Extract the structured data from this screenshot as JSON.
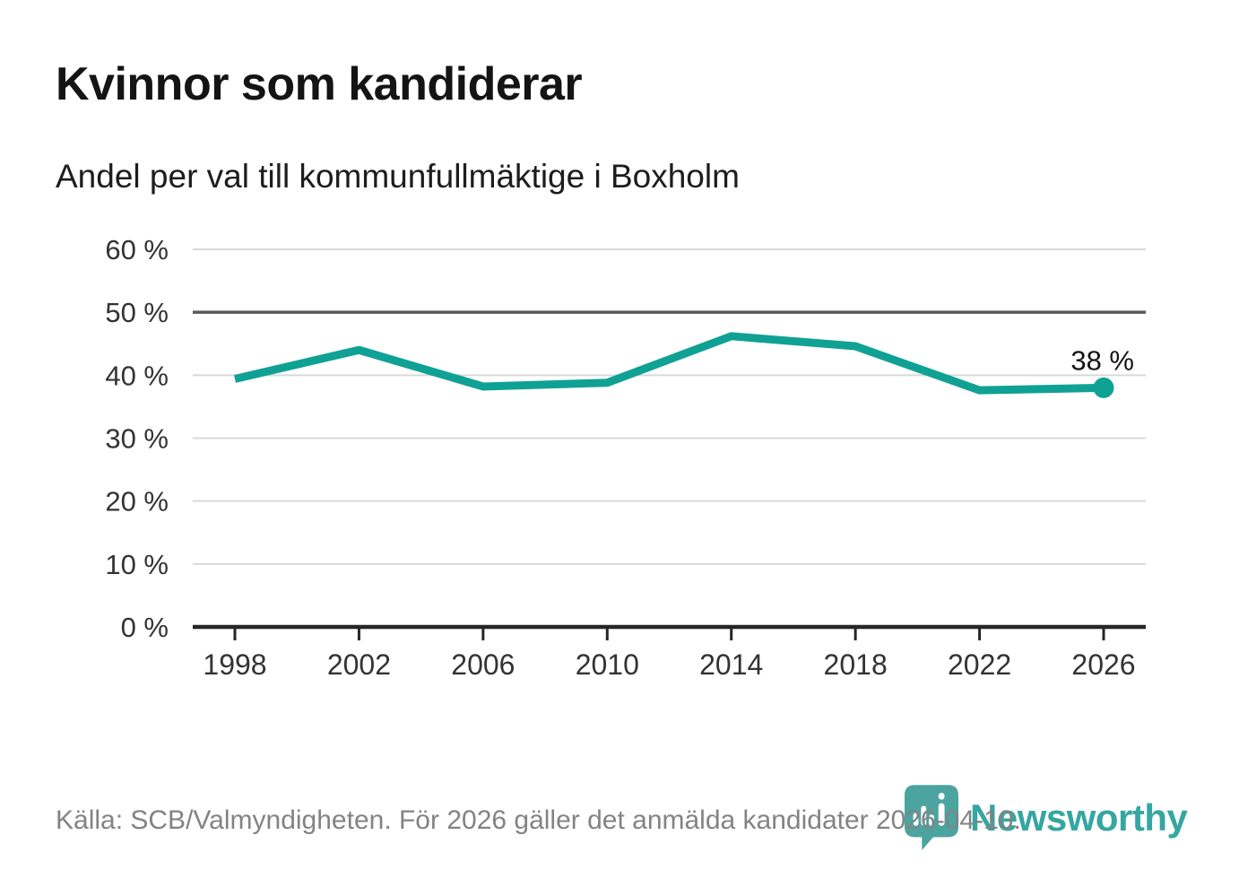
{
  "header": {
    "title": "Kvinnor som kandiderar",
    "subtitle": "Andel per val till kommunfullmäktige i Boxholm"
  },
  "chart_data": {
    "type": "line",
    "title": "Kvinnor som kandiderar",
    "subtitle": "Andel per val till kommunfullmäktige i Boxholm",
    "categories": [
      "1998",
      "2002",
      "2006",
      "2010",
      "2014",
      "2018",
      "2022",
      "2026"
    ],
    "values": [
      39.4,
      44.0,
      38.2,
      38.8,
      46.2,
      44.6,
      37.6,
      38.0
    ],
    "unit": "%",
    "ylim": [
      0,
      60
    ],
    "yticks": [
      0,
      10,
      20,
      30,
      40,
      50,
      60
    ],
    "ytick_suffix": " %",
    "reference_line": 50,
    "grid": true,
    "legend": "none",
    "end_point_label": "38 %",
    "line_color": "#10a195",
    "grid_color": "#d9d9d9",
    "reference_line_color": "#595959",
    "axis_color": "#262626",
    "tick_label_color": "#333333",
    "annotation_color": "#141414"
  },
  "footer": {
    "source": "Källa: SCB/Valmyndigheten. För 2026 gäller det anmälda kandidater 2026-04-10."
  },
  "logo": {
    "name": "Newsworthy",
    "wordmark_color": "#35a6a1",
    "icon_color": "#4ba49f",
    "icon": "newsworthy-pin-barchart-icon"
  }
}
